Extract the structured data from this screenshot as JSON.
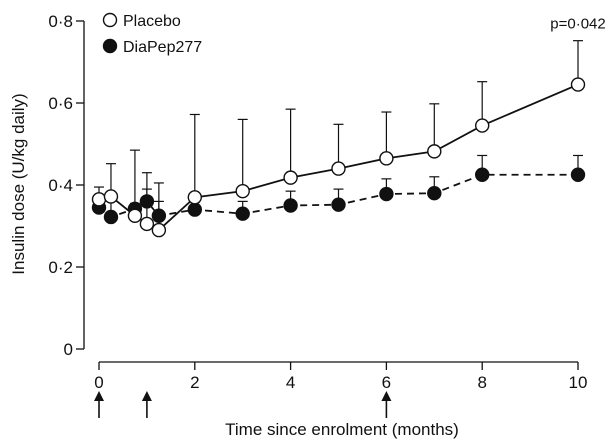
{
  "chart_data": {
    "type": "line",
    "xlabel": "Time since enrolment (months)",
    "ylabel": "Insulin dose (U/kg daily)",
    "xlim": [
      0,
      10
    ],
    "ylim": [
      0,
      0.8
    ],
    "xticks": [
      0,
      2,
      4,
      6,
      8,
      10
    ],
    "yticks": [
      0,
      0.2,
      0.4,
      0.6,
      0.8
    ],
    "xtick_labels": [
      "0",
      "2",
      "4",
      "6",
      "8",
      "10"
    ],
    "ytick_labels": [
      "0",
      "0·2",
      "0·4",
      "0·6",
      "0·8"
    ],
    "legend_position": "top-left",
    "series": [
      {
        "name": "Placebo",
        "marker": "open-circle",
        "line": "solid",
        "x": [
          0,
          0.25,
          0.75,
          1,
          1.25,
          2,
          3,
          4,
          5,
          6,
          7,
          8,
          10
        ],
        "y": [
          0.365,
          0.372,
          0.325,
          0.305,
          0.29,
          0.37,
          0.385,
          0.418,
          0.44,
          0.465,
          0.482,
          0.545,
          0.645
        ],
        "error_upper": [
          0.395,
          0.452,
          0.485,
          0.43,
          0.405,
          0.572,
          0.56,
          0.585,
          0.548,
          0.578,
          0.598,
          0.652,
          0.752
        ]
      },
      {
        "name": "DiaPep277",
        "marker": "filled-circle",
        "line": "dashed",
        "x": [
          0,
          0.25,
          0.75,
          1,
          1.25,
          2,
          3,
          4,
          5,
          6,
          7,
          8,
          10
        ],
        "y": [
          0.345,
          0.322,
          0.342,
          0.36,
          0.325,
          0.34,
          0.33,
          0.35,
          0.352,
          0.378,
          0.38,
          0.425,
          0.425
        ],
        "error_upper": [
          0.36,
          0.375,
          0.355,
          0.39,
          0.36,
          0.358,
          0.36,
          0.385,
          0.39,
          0.415,
          0.42,
          0.472,
          0.472
        ]
      }
    ],
    "annotations": [
      {
        "text": "p=0·042",
        "x": 10,
        "y": 0.752
      }
    ],
    "arrows_at_x": [
      0,
      1,
      6
    ]
  }
}
